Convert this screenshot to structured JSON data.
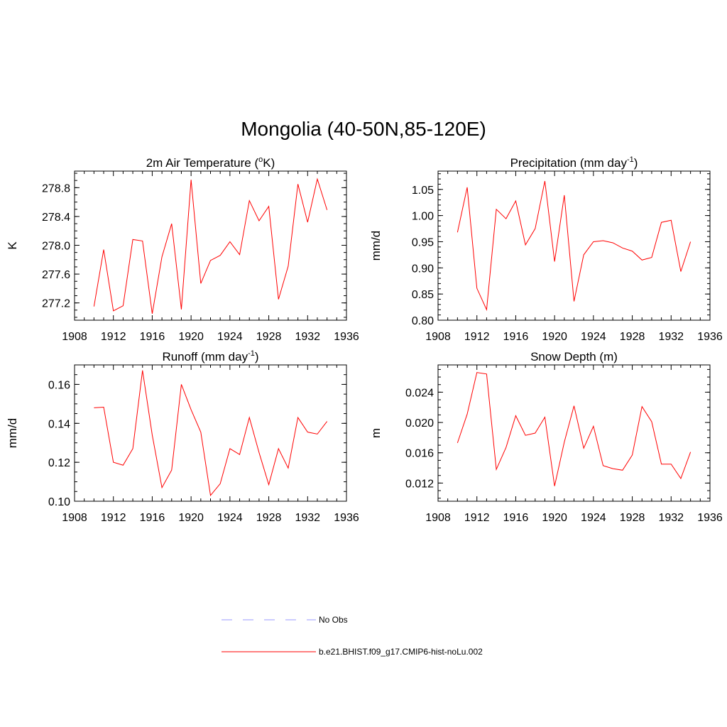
{
  "title": "Mongolia (40-50N,85-120E)",
  "legend": {
    "entries": [
      {
        "label": "No Obs",
        "color": "#9999ff",
        "style": "dashed"
      },
      {
        "label": "b.e21.BHIST.f09_g17.CMIP6-hist-noLu.002",
        "color": "#ff0000",
        "style": "solid"
      }
    ]
  },
  "chart_data": [
    {
      "type": "line",
      "title": "2m Air Temperature (",
      "title_sup": "o",
      "title_post": "K)",
      "ylabel": "K",
      "xlim": [
        1908,
        1936
      ],
      "ylim": [
        276.96,
        279.03
      ],
      "xticks": [
        "1908",
        "1912",
        "1916",
        "1920",
        "1924",
        "1928",
        "1932",
        "1936"
      ],
      "yticks": [
        {
          "value": 277.2,
          "label": "277.2"
        },
        {
          "value": 277.6,
          "label": "277.6"
        },
        {
          "value": 278.0,
          "label": "278.0"
        },
        {
          "value": 278.4,
          "label": "278.4"
        },
        {
          "value": 278.8,
          "label": "278.8"
        }
      ],
      "ytick_step": 0.4,
      "yminor": 4,
      "series": [
        {
          "color": "#ff0000",
          "x": [
            1910,
            1911,
            1912,
            1913,
            1914,
            1915,
            1916,
            1917,
            1918,
            1919,
            1920,
            1921,
            1922,
            1923,
            1924,
            1925,
            1926,
            1927,
            1928,
            1929,
            1930,
            1931,
            1932,
            1933,
            1934
          ],
          "y": [
            277.15,
            277.94,
            277.09,
            277.16,
            278.08,
            278.06,
            277.05,
            277.84,
            278.3,
            277.11,
            278.91,
            277.47,
            277.79,
            277.86,
            278.05,
            277.87,
            278.62,
            278.34,
            278.54,
            277.25,
            277.71,
            278.85,
            278.32,
            278.92,
            278.49
          ]
        }
      ]
    },
    {
      "type": "line",
      "title": "Precipitation (mm day",
      "title_sup": "-1",
      "title_post": ")",
      "ylabel": "mm/d",
      "xlim": [
        1908,
        1936
      ],
      "ylim": [
        0.8,
        1.085
      ],
      "xticks": [
        "1908",
        "1912",
        "1916",
        "1920",
        "1924",
        "1928",
        "1932",
        "1936"
      ],
      "yticks": [
        {
          "value": 0.8,
          "label": "0.80"
        },
        {
          "value": 0.85,
          "label": "0.85"
        },
        {
          "value": 0.9,
          "label": "0.90"
        },
        {
          "value": 0.95,
          "label": "0.95"
        },
        {
          "value": 1.0,
          "label": "1.00"
        },
        {
          "value": 1.05,
          "label": "1.05"
        }
      ],
      "ytick_step": 0.05,
      "yminor": 5,
      "series": [
        {
          "color": "#ff0000",
          "x": [
            1910,
            1911,
            1912,
            1913,
            1914,
            1915,
            1916,
            1917,
            1918,
            1919,
            1920,
            1921,
            1922,
            1923,
            1924,
            1925,
            1926,
            1927,
            1928,
            1929,
            1930,
            1931,
            1932,
            1933,
            1934
          ],
          "y": [
            0.968,
            1.054,
            0.861,
            0.82,
            1.012,
            0.994,
            1.028,
            0.944,
            0.975,
            1.066,
            0.912,
            1.039,
            0.836,
            0.925,
            0.95,
            0.952,
            0.948,
            0.938,
            0.932,
            0.915,
            0.92,
            0.987,
            0.991,
            0.893,
            0.95
          ]
        }
      ]
    },
    {
      "type": "line",
      "title": "Runoff (mm day",
      "title_sup": "-1",
      "title_post": ")",
      "ylabel": "mm/d",
      "xlim": [
        1908,
        1936
      ],
      "ylim": [
        0.1,
        0.17
      ],
      "xticks": [
        "1908",
        "1912",
        "1916",
        "1920",
        "1924",
        "1928",
        "1932",
        "1936"
      ],
      "yticks": [
        {
          "value": 0.1,
          "label": "0.10"
        },
        {
          "value": 0.12,
          "label": "0.12"
        },
        {
          "value": 0.14,
          "label": "0.14"
        },
        {
          "value": 0.16,
          "label": "0.16"
        }
      ],
      "ytick_step": 0.02,
      "yminor": 4,
      "series": [
        {
          "color": "#ff0000",
          "x": [
            1910,
            1911,
            1912,
            1913,
            1914,
            1915,
            1916,
            1917,
            1918,
            1919,
            1920,
            1921,
            1922,
            1923,
            1924,
            1925,
            1926,
            1927,
            1928,
            1929,
            1930,
            1931,
            1932,
            1933,
            1934
          ],
          "y": [
            0.148,
            0.1483,
            0.12,
            0.1185,
            0.127,
            0.1672,
            0.134,
            0.107,
            0.116,
            0.16,
            0.147,
            0.1355,
            0.103,
            0.109,
            0.127,
            0.124,
            0.143,
            0.125,
            0.1085,
            0.127,
            0.117,
            0.143,
            0.1355,
            0.1345,
            0.141
          ]
        }
      ]
    },
    {
      "type": "line",
      "title": "Snow Depth (m)",
      "title_sup": "",
      "title_post": "",
      "ylabel": "m",
      "xlim": [
        1908,
        1936
      ],
      "ylim": [
        0.0096,
        0.0276
      ],
      "xticks": [
        "1908",
        "1912",
        "1916",
        "1920",
        "1924",
        "1928",
        "1932",
        "1936"
      ],
      "yticks": [
        {
          "value": 0.012,
          "label": "0.012"
        },
        {
          "value": 0.016,
          "label": "0.016"
        },
        {
          "value": 0.02,
          "label": "0.020"
        },
        {
          "value": 0.024,
          "label": "0.024"
        }
      ],
      "ytick_step": 0.004,
      "yminor": 4,
      "series": [
        {
          "color": "#ff0000",
          "x": [
            1910,
            1911,
            1912,
            1913,
            1914,
            1915,
            1916,
            1917,
            1918,
            1919,
            1920,
            1921,
            1922,
            1923,
            1924,
            1925,
            1926,
            1927,
            1928,
            1929,
            1930,
            1931,
            1932,
            1933,
            1934
          ],
          "y": [
            0.0173,
            0.0211,
            0.0266,
            0.0264,
            0.0138,
            0.0167,
            0.0209,
            0.0183,
            0.0186,
            0.0207,
            0.0116,
            0.0174,
            0.0222,
            0.0166,
            0.0195,
            0.0143,
            0.0139,
            0.0137,
            0.0157,
            0.0221,
            0.0201,
            0.0145,
            0.0145,
            0.0126,
            0.0161
          ]
        }
      ]
    }
  ]
}
